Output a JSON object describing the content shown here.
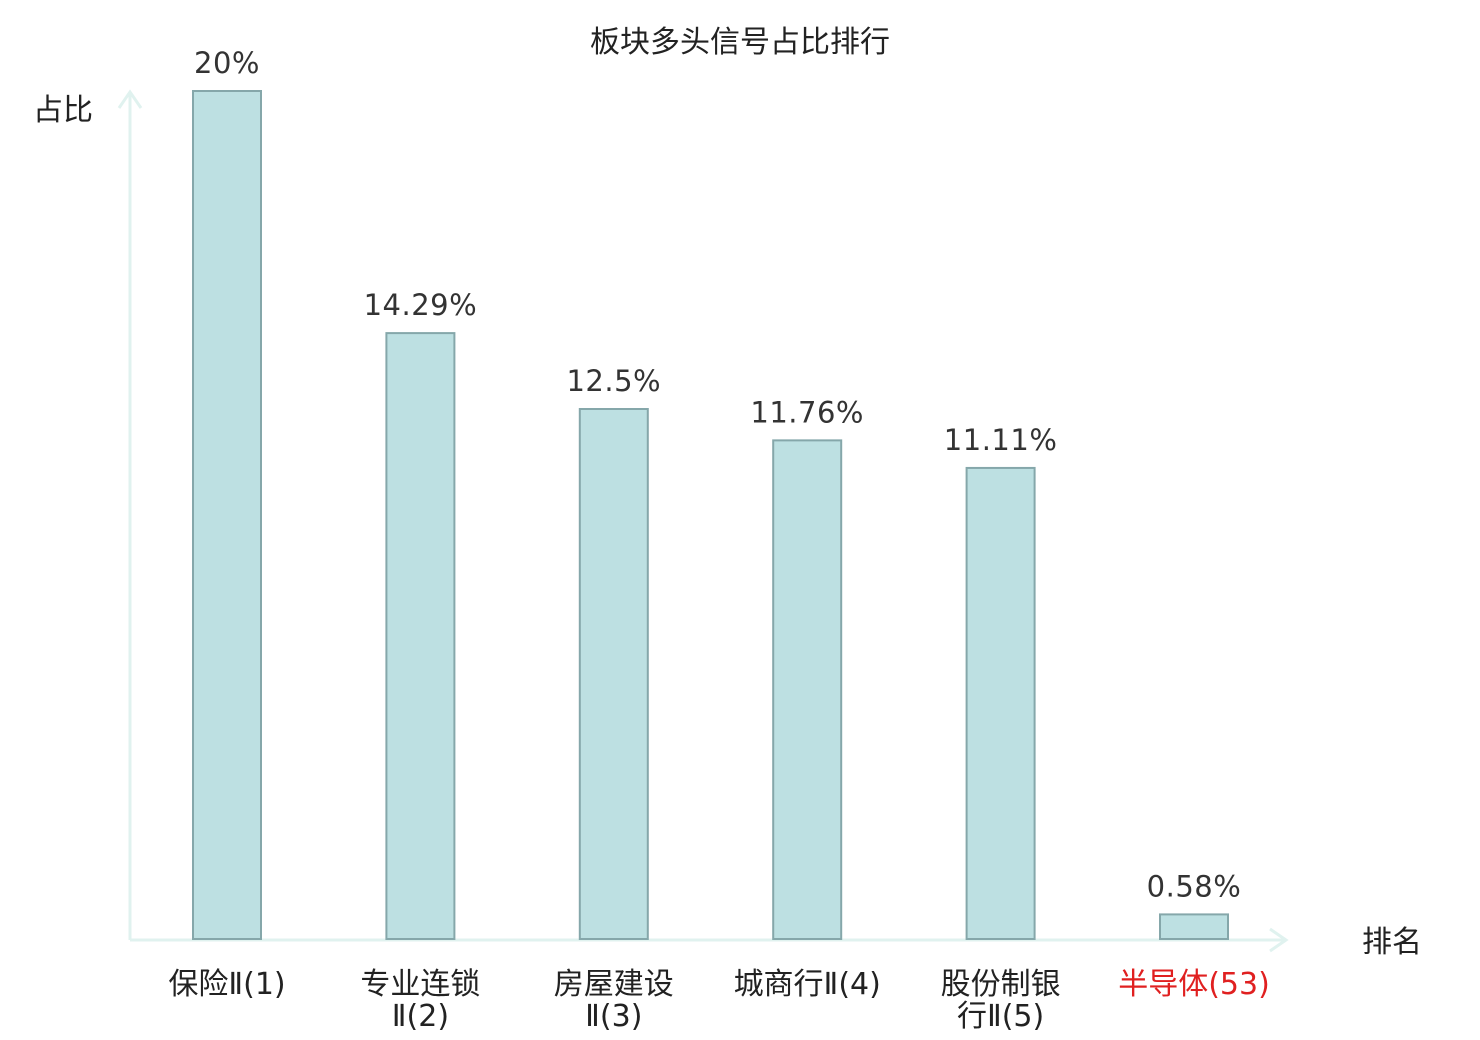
{
  "chart_data": {
    "type": "bar",
    "title": "板块多头信号占比排行",
    "ylabel": "占比",
    "xlabel": "排名",
    "ylim": [
      0,
      20
    ],
    "grid": false,
    "legend": "none",
    "categories": [
      {
        "name": "保险",
        "suffix": "Ⅱ(1)",
        "lines": [
          "保险Ⅱ(1)"
        ],
        "highlight": false
      },
      {
        "name": "专业连锁",
        "suffix": "Ⅱ(2)",
        "lines": [
          "专业连锁",
          "Ⅱ(2)"
        ],
        "highlight": false
      },
      {
        "name": "房屋建设",
        "suffix": "Ⅱ(3)",
        "lines": [
          "房屋建设",
          "Ⅱ(3)"
        ],
        "highlight": false
      },
      {
        "name": "城商行",
        "suffix": "Ⅱ(4)",
        "lines": [
          "城商行Ⅱ(4)"
        ],
        "highlight": false
      },
      {
        "name": "股份制银行",
        "suffix": "Ⅱ(5)",
        "lines": [
          "股份制银",
          "行Ⅱ(5)"
        ],
        "highlight": false
      },
      {
        "name": "半导体",
        "suffix": "(53)",
        "lines": [
          "半导体(53)"
        ],
        "highlight": true
      }
    ],
    "values": [
      20,
      14.29,
      12.5,
      11.76,
      11.11,
      0.58
    ],
    "value_labels": [
      "20%",
      "14.29%",
      "12.5%",
      "11.76%",
      "11.11%",
      "0.58%"
    ],
    "colors": {
      "bar_fill": "#bde0e2",
      "bar_stroke": "#85a7aa",
      "axis": "#e0f2ef",
      "highlight_text": "#e02020"
    }
  }
}
